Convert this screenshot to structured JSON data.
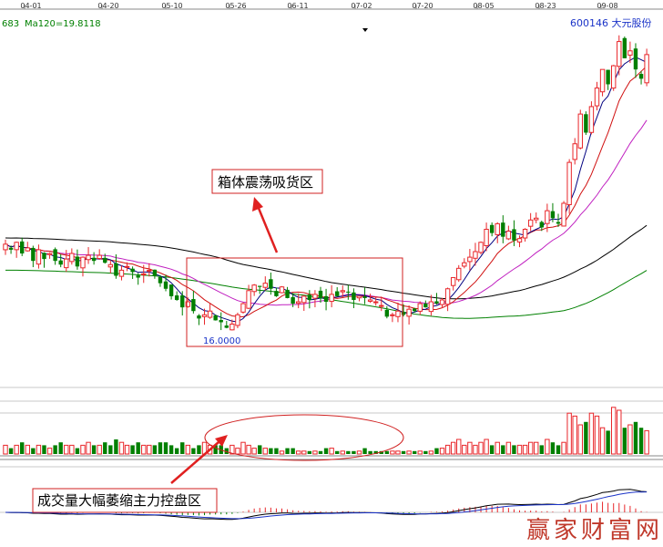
{
  "header": {
    "left_value": "683",
    "ma_label": "Ma120=19.8118",
    "stock_label": "600146 大元股份"
  },
  "x_axis": {
    "dates": [
      "04-01",
      "04-20",
      "05-10",
      "05-26",
      "06-11",
      "07-02",
      "07-20",
      "08-05",
      "08-23",
      "09-08"
    ]
  },
  "annotations": {
    "box_label": "箱体震荡吸货区",
    "volume_label": "成交量大幅萎缩主力控盘区",
    "low_marker": "16.0000"
  },
  "watermark": "赢家财富网",
  "colors": {
    "up": "#e8262a",
    "down": "#007f00",
    "ma5": "#000080",
    "ma10": "#d01010",
    "ma20": "#c020c0",
    "ma60": "#000000",
    "ma120": "#008000",
    "box": "#d02020",
    "grid": "#b0b0b0"
  },
  "chart_data": {
    "type": "candlestick",
    "title": "600146 大元股份",
    "x_ticks": [
      "04-01",
      "04-20",
      "05-10",
      "05-26",
      "06-11",
      "07-02",
      "07-20",
      "08-05",
      "08-23",
      "09-08"
    ],
    "price_range_approx": [
      15,
      33
    ],
    "close_approx": [
      20.6,
      20.3,
      20.7,
      20.1,
      20.4,
      19.7,
      20.3,
      19.8,
      20.1,
      19.7,
      19.5,
      19.8,
      20.1,
      19.4,
      19.9,
      20.0,
      19.7,
      20.0,
      19.6,
      19.5,
      18.9,
      19.2,
      19.4,
      19.1,
      18.8,
      19.0,
      19.2,
      18.9,
      18.5,
      18.2,
      17.8,
      17.6,
      17.2,
      17.5,
      17.0,
      16.6,
      16.8,
      17.0,
      16.5,
      16.4,
      16.1,
      16.3,
      16.8,
      17.4,
      18.1,
      18.4,
      18.3,
      18.5,
      18.2,
      17.8,
      18.3,
      17.7,
      17.4,
      17.5,
      17.8,
      17.6,
      17.9,
      17.7,
      17.5,
      17.9,
      17.8,
      18.1,
      18.0,
      17.6,
      17.8,
      17.7,
      17.6,
      17.5,
      17.3,
      16.7,
      16.8,
      17.0,
      16.8,
      17.1,
      17.0,
      17.4,
      17.2,
      17.5,
      17.4,
      17.6,
      18.2,
      18.8,
      19.3,
      19.6,
      19.9,
      20.2,
      20.7,
      21.4,
      21.2,
      21.7,
      21.0,
      21.3,
      20.8,
      20.9,
      21.4,
      21.9,
      22.0,
      21.5,
      22.4,
      22.0,
      21.7,
      22.8,
      25.0,
      26.0,
      27.6,
      26.6,
      28.0,
      29.0,
      30.0,
      29.2,
      30.2,
      31.5,
      30.6,
      31.0,
      30.0,
      29.5,
      30.8
    ],
    "volume_approx": [
      3,
      2,
      3,
      4,
      3,
      2,
      3,
      3,
      2,
      3,
      4,
      3,
      3,
      2,
      3,
      4,
      3,
      3,
      4,
      3,
      5,
      4,
      3,
      3,
      4,
      3,
      3,
      3,
      4,
      4,
      3,
      2,
      4,
      3,
      2,
      3,
      4,
      3,
      3,
      3,
      2,
      3,
      2,
      4,
      3,
      2,
      3,
      2,
      2,
      2,
      1,
      2,
      2,
      1,
      1,
      1,
      1,
      1,
      2,
      2,
      1,
      1,
      1,
      1,
      1,
      2,
      1,
      1,
      1,
      1,
      1,
      1,
      1,
      1,
      1,
      1,
      1,
      1,
      2,
      2,
      3,
      4,
      5,
      3,
      4,
      3,
      4,
      5,
      3,
      4,
      3,
      4,
      3,
      3,
      3,
      4,
      4,
      3,
      5,
      4,
      3,
      4,
      14,
      13,
      10,
      11,
      14,
      13,
      9,
      8,
      16,
      15,
      9,
      10,
      11,
      9,
      8
    ]
  }
}
